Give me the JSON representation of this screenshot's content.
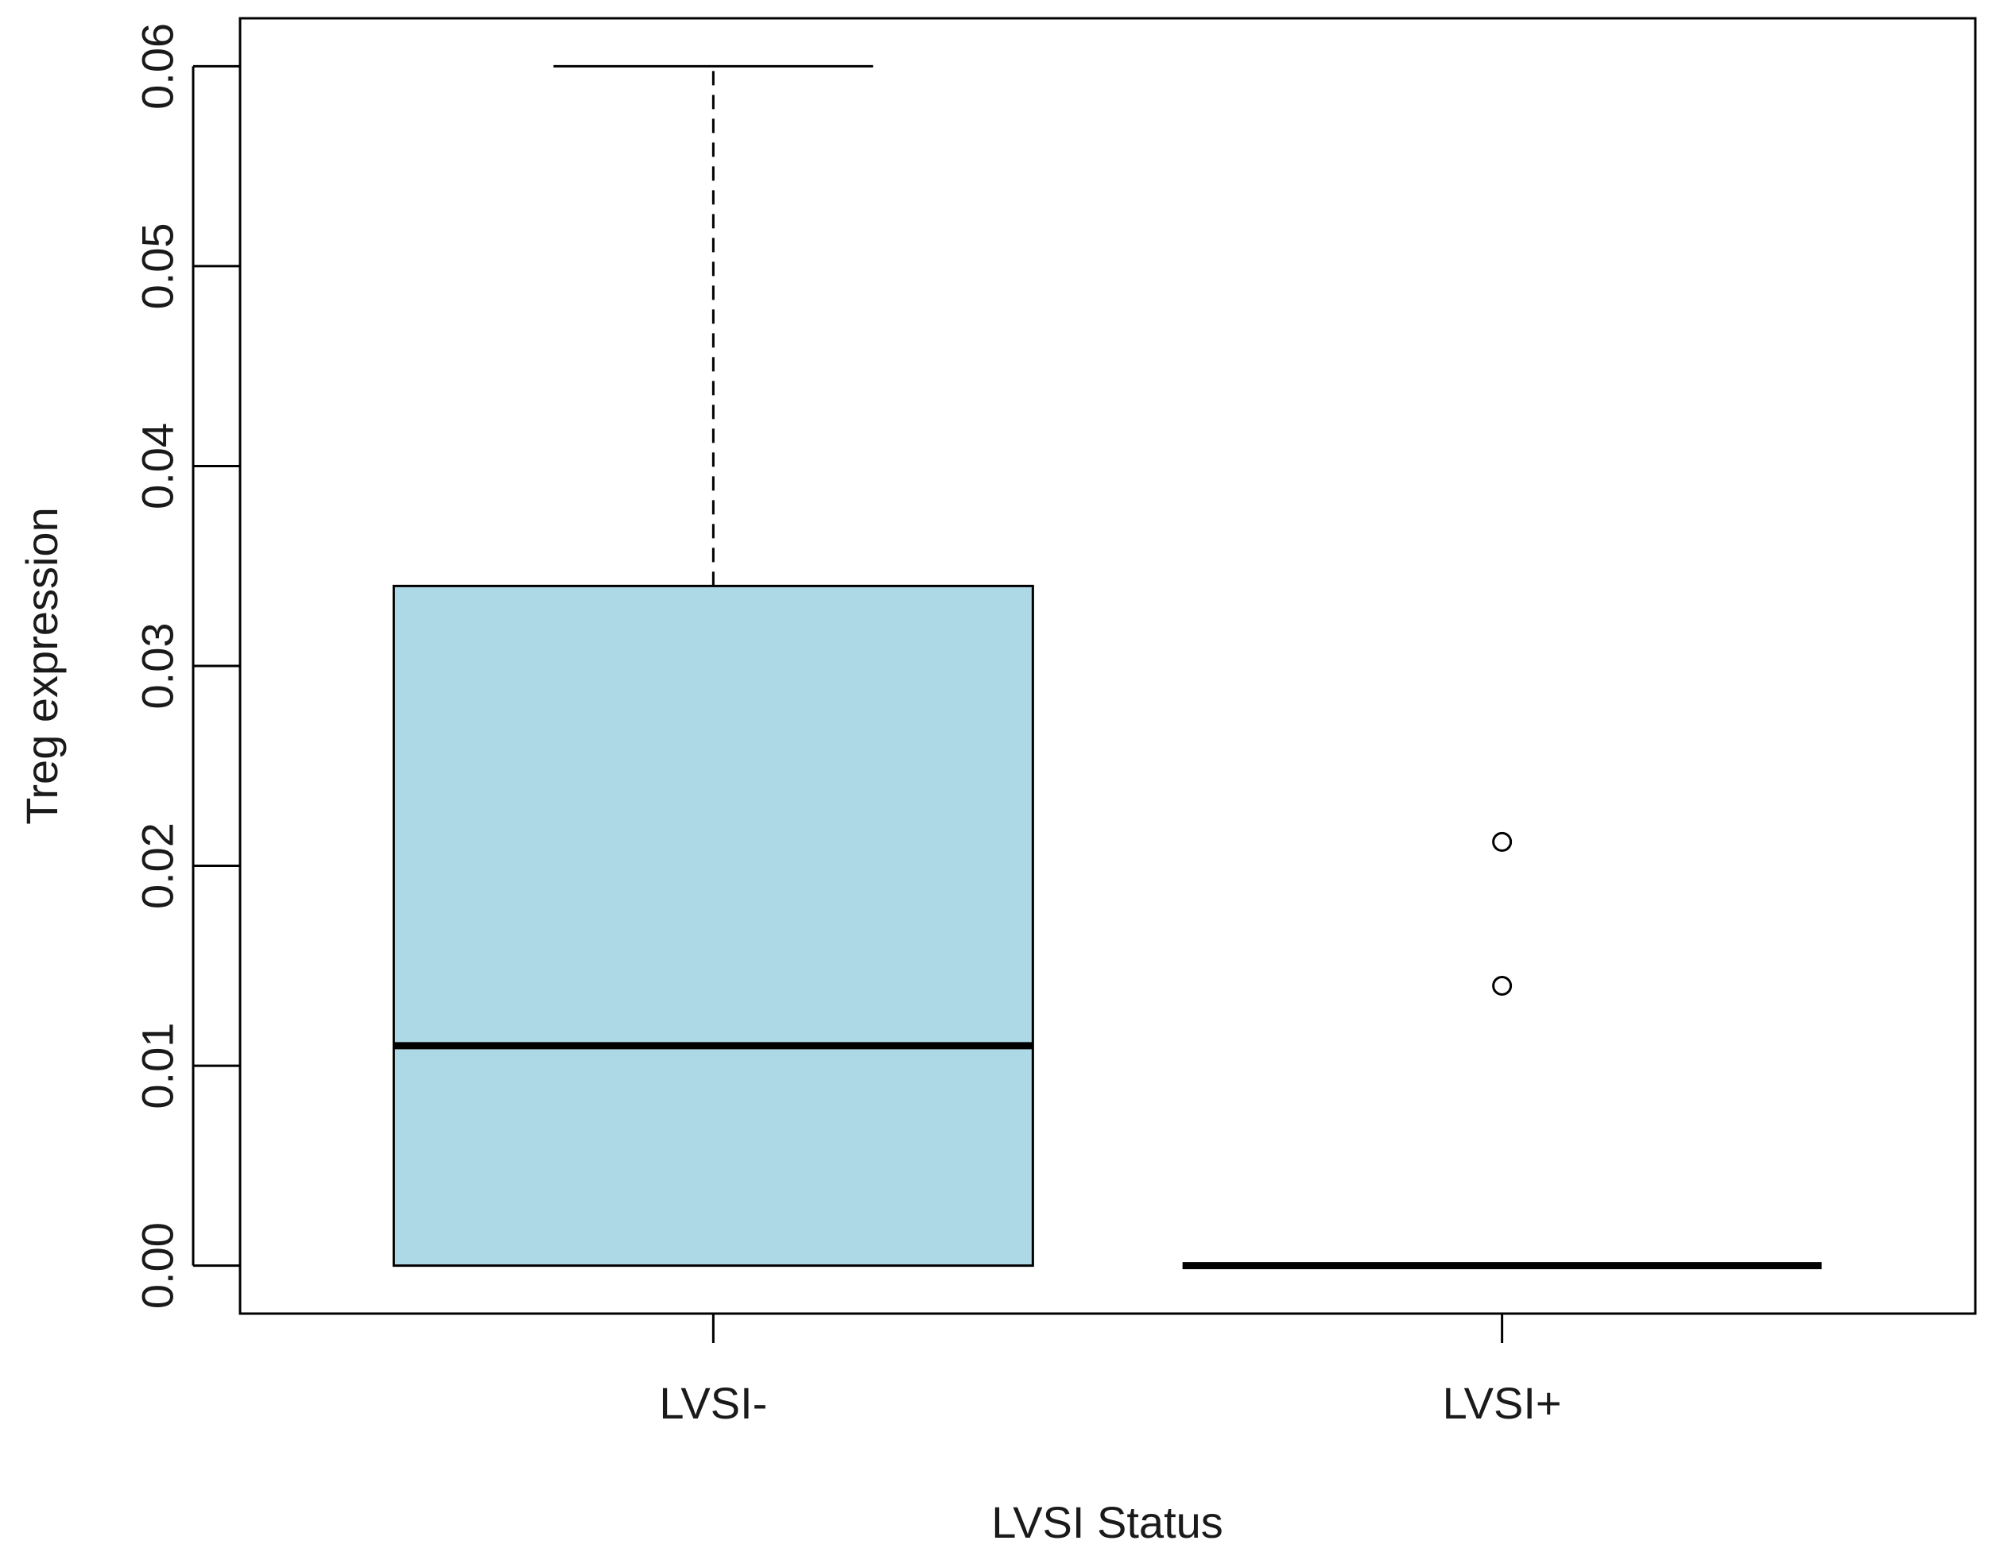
{
  "chart_data": {
    "type": "boxplot",
    "title": "",
    "xlabel": "LVSI Status",
    "ylabel": "Treg expression",
    "categories": [
      "LVSI-",
      "LVSI+"
    ],
    "yticks": [
      "0.00",
      "0.01",
      "0.02",
      "0.03",
      "0.04",
      "0.05",
      "0.06"
    ],
    "ylim": [
      -0.0024,
      0.0624
    ],
    "grid": false,
    "boxes": [
      {
        "label": "LVSI-",
        "min": 0.0,
        "q1": 0.0,
        "median": 0.011,
        "q3": 0.034,
        "max": 0.06,
        "outliers": []
      },
      {
        "label": "LVSI+",
        "min": 0.0,
        "q1": 0.0,
        "median": 0.0,
        "q3": 0.0,
        "max": 0.0,
        "outliers": [
          0.014,
          0.0212
        ]
      }
    ],
    "colors": {
      "box_fill": "#add8e6",
      "stroke": "#000000",
      "text": "#1a1a1a"
    }
  }
}
